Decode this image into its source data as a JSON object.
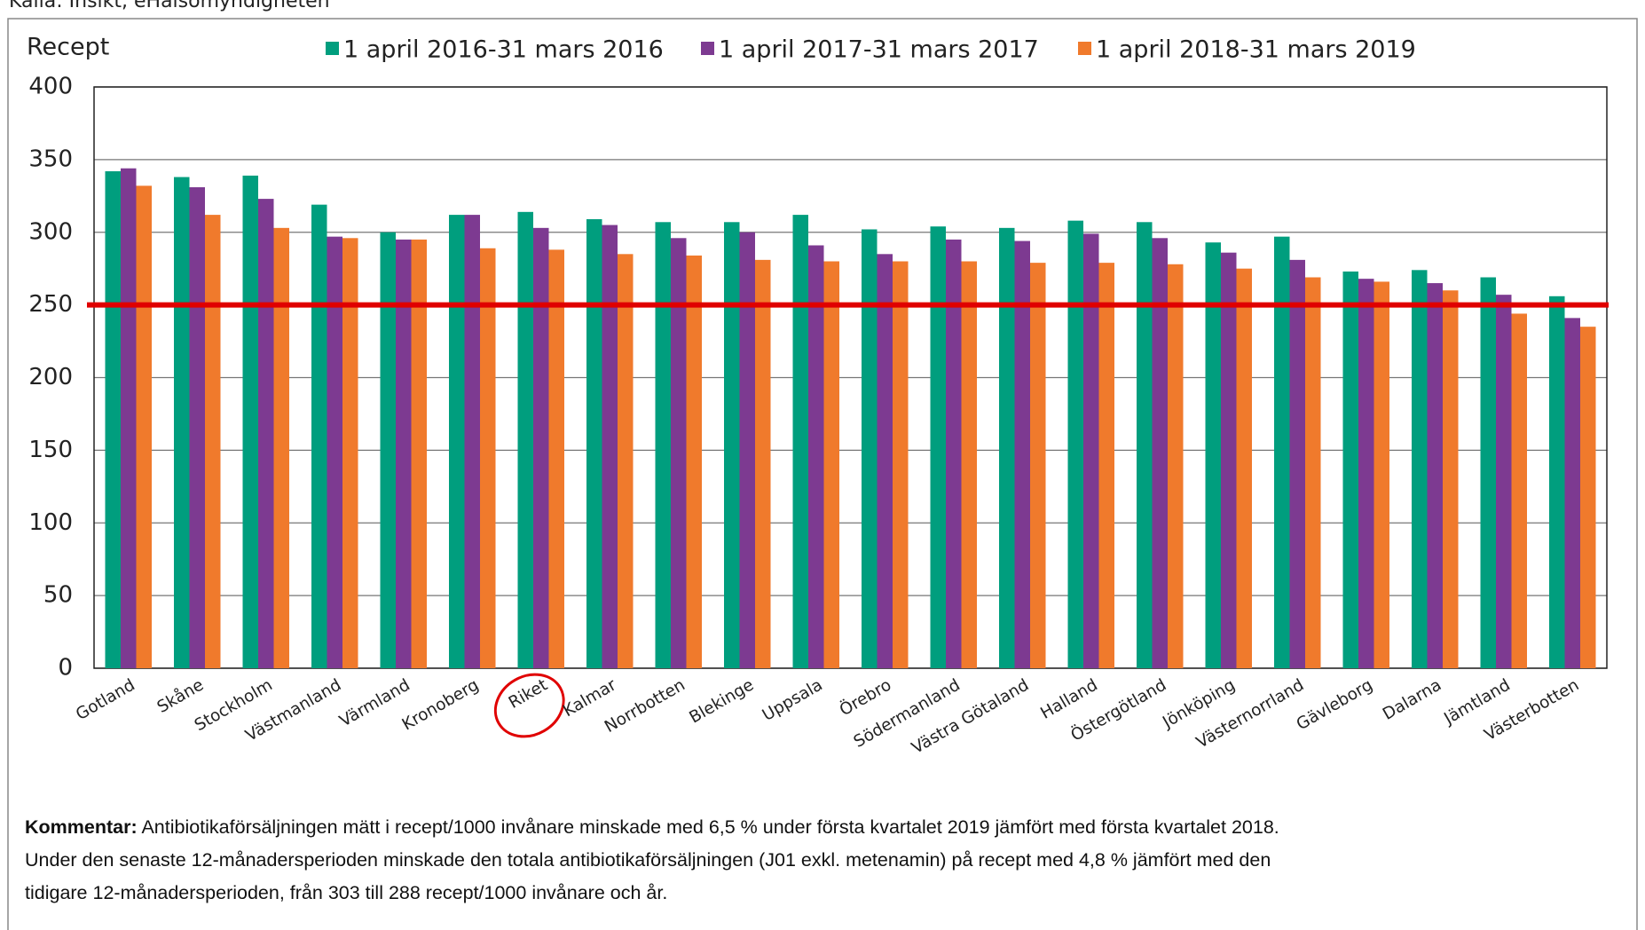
{
  "source": "Källa: Insikt, eHälsomyndigheten",
  "chart_data": {
    "type": "bar",
    "y_label": "Recept",
    "categories": [
      "Gotland",
      "Skåne",
      "Stockholm",
      "Västmanland",
      "Värmland",
      "Kronoberg",
      "Riket",
      "Kalmar",
      "Norrbotten",
      "Blekinge",
      "Uppsala",
      "Örebro",
      "Södermanland",
      "Västra Götaland",
      "Halland",
      "Östergötland",
      "Jönköping",
      "Västernorrland",
      "Gävleborg",
      "Dalarna",
      "Jämtland",
      "Västerbotten"
    ],
    "series": [
      {
        "name": "1 april 2016-31 mars 2016",
        "color": "#009e7e",
        "values": [
          342,
          338,
          339,
          319,
          300,
          312,
          314,
          309,
          307,
          307,
          312,
          302,
          304,
          303,
          308,
          307,
          293,
          297,
          273,
          274,
          269,
          256
        ]
      },
      {
        "name": "1 april 2017-31 mars 2017",
        "color": "#7d3a91",
        "values": [
          344,
          331,
          323,
          297,
          295,
          312,
          303,
          305,
          296,
          300,
          291,
          285,
          295,
          294,
          299,
          296,
          286,
          281,
          268,
          265,
          257,
          241
        ]
      },
      {
        "name": "1 april 2018-31 mars 2019",
        "color": "#f07a2c",
        "values": [
          332,
          312,
          303,
          296,
          295,
          289,
          288,
          285,
          284,
          281,
          280,
          280,
          280,
          279,
          279,
          278,
          275,
          269,
          266,
          260,
          244,
          235
        ]
      }
    ],
    "ylim": [
      0,
      400
    ],
    "yticks": [
      0,
      50,
      100,
      150,
      200,
      250,
      300,
      350,
      400
    ],
    "grid": true,
    "legend": "top",
    "reference_line": {
      "value": 250,
      "color": "#e00000"
    },
    "highlighted_category_index": 6
  },
  "comment": {
    "bold": "Kommentar:",
    "lines": [
      "Antibiotikaförsäljningen mätt i recept/1000 invånare minskade med 6,5 % under första kvartalet 2019 jämfört med första kvartalet 2018.",
      "Under den senaste 12-månadersperioden minskade den totala antibiotikaförsäljningen (J01 exkl. metenamin) på recept med 4,8 % jämfört med den",
      "tidigare 12-månadersperioden, från 303 till 288 recept/1000 invånare och år."
    ]
  }
}
